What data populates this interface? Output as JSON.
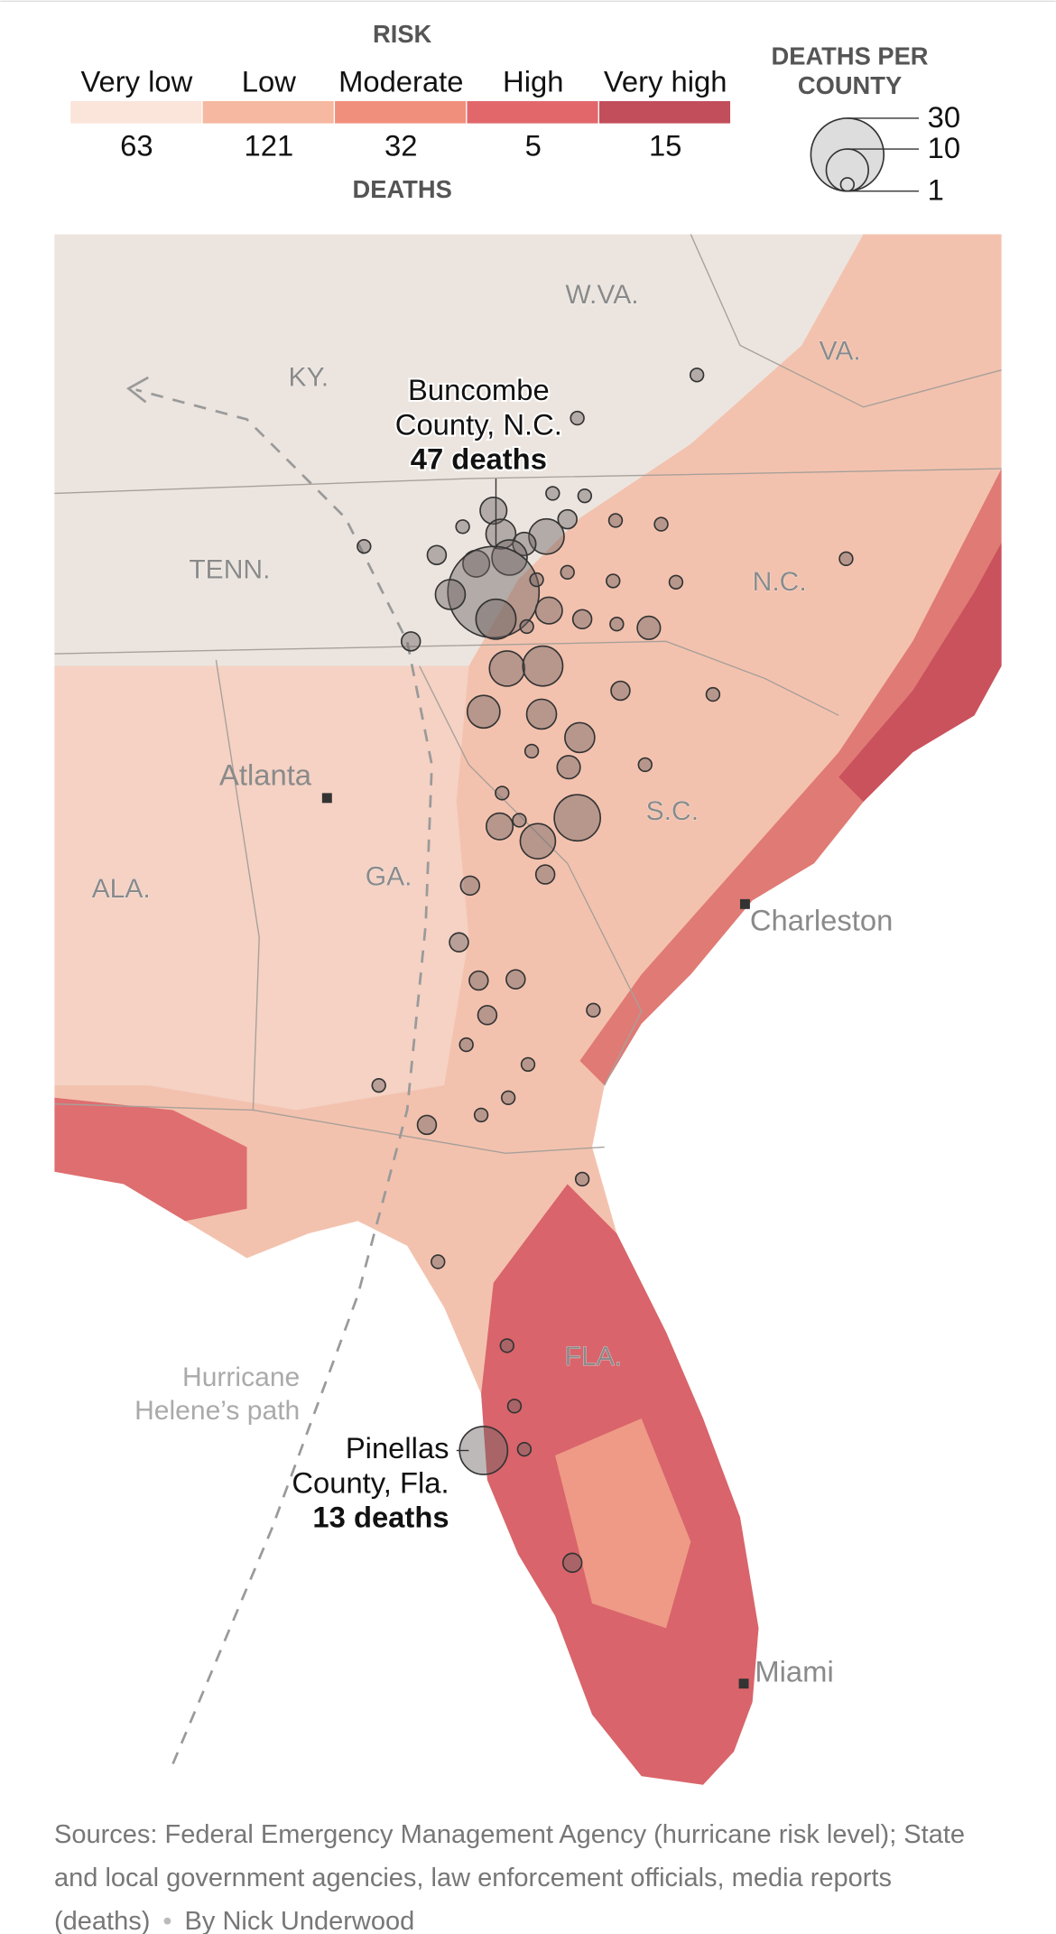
{
  "risk_legend": {
    "title": "RISK",
    "subtitle": "DEATHS",
    "items": [
      {
        "label": "Very low",
        "deaths": 63,
        "color": "#fbe4d9"
      },
      {
        "label": "Low",
        "deaths": 121,
        "color": "#f6b8a0"
      },
      {
        "label": "Moderate",
        "deaths": 32,
        "color": "#f08f7b"
      },
      {
        "label": "High",
        "deaths": 5,
        "color": "#e2676b"
      },
      {
        "label": "Very high",
        "deaths": 15,
        "color": "#c24e5b"
      }
    ]
  },
  "size_legend": {
    "title_lines": [
      "DEATHS PER",
      "COUNTY"
    ],
    "values": [
      30,
      10,
      1
    ]
  },
  "states": [
    "W.VA.",
    "VA.",
    "KY.",
    "TENN.",
    "N.C.",
    "S.C.",
    "GA.",
    "ALA.",
    "FLA."
  ],
  "cities": [
    "Atlanta",
    "Charleston",
    "Miami"
  ],
  "hurricane_label": [
    "Hurricane",
    "Helene’s path"
  ],
  "annotations": [
    {
      "name_lines": [
        "Buncombe",
        "County, N.C."
      ],
      "deaths_label": "47 deaths"
    },
    {
      "name_lines": [
        "Pinellas",
        "County, Fla."
      ],
      "deaths_label": "13 deaths"
    }
  ],
  "bubble_deaths": [
    1,
    1,
    1,
    1,
    4,
    1,
    2,
    1,
    1,
    5,
    7,
    3,
    1,
    2,
    4,
    7,
    47,
    1,
    1,
    1,
    1,
    1,
    5,
    4,
    2,
    1,
    1,
    3,
    9,
    2,
    7,
    9,
    2,
    1,
    6,
    5,
    5,
    1,
    3,
    1,
    1,
    12,
    4,
    1,
    7,
    2,
    2,
    2,
    2,
    2,
    2,
    1,
    1,
    1,
    1,
    1,
    1,
    2,
    1,
    1,
    1,
    1,
    13,
    1,
    2
  ],
  "footer": {
    "sources": "Sources: Federal Emergency Management Agency (hurricane risk level); State and local government agencies, law enforcement officials, media reports (deaths)",
    "byline": "By Nick Underwood"
  }
}
